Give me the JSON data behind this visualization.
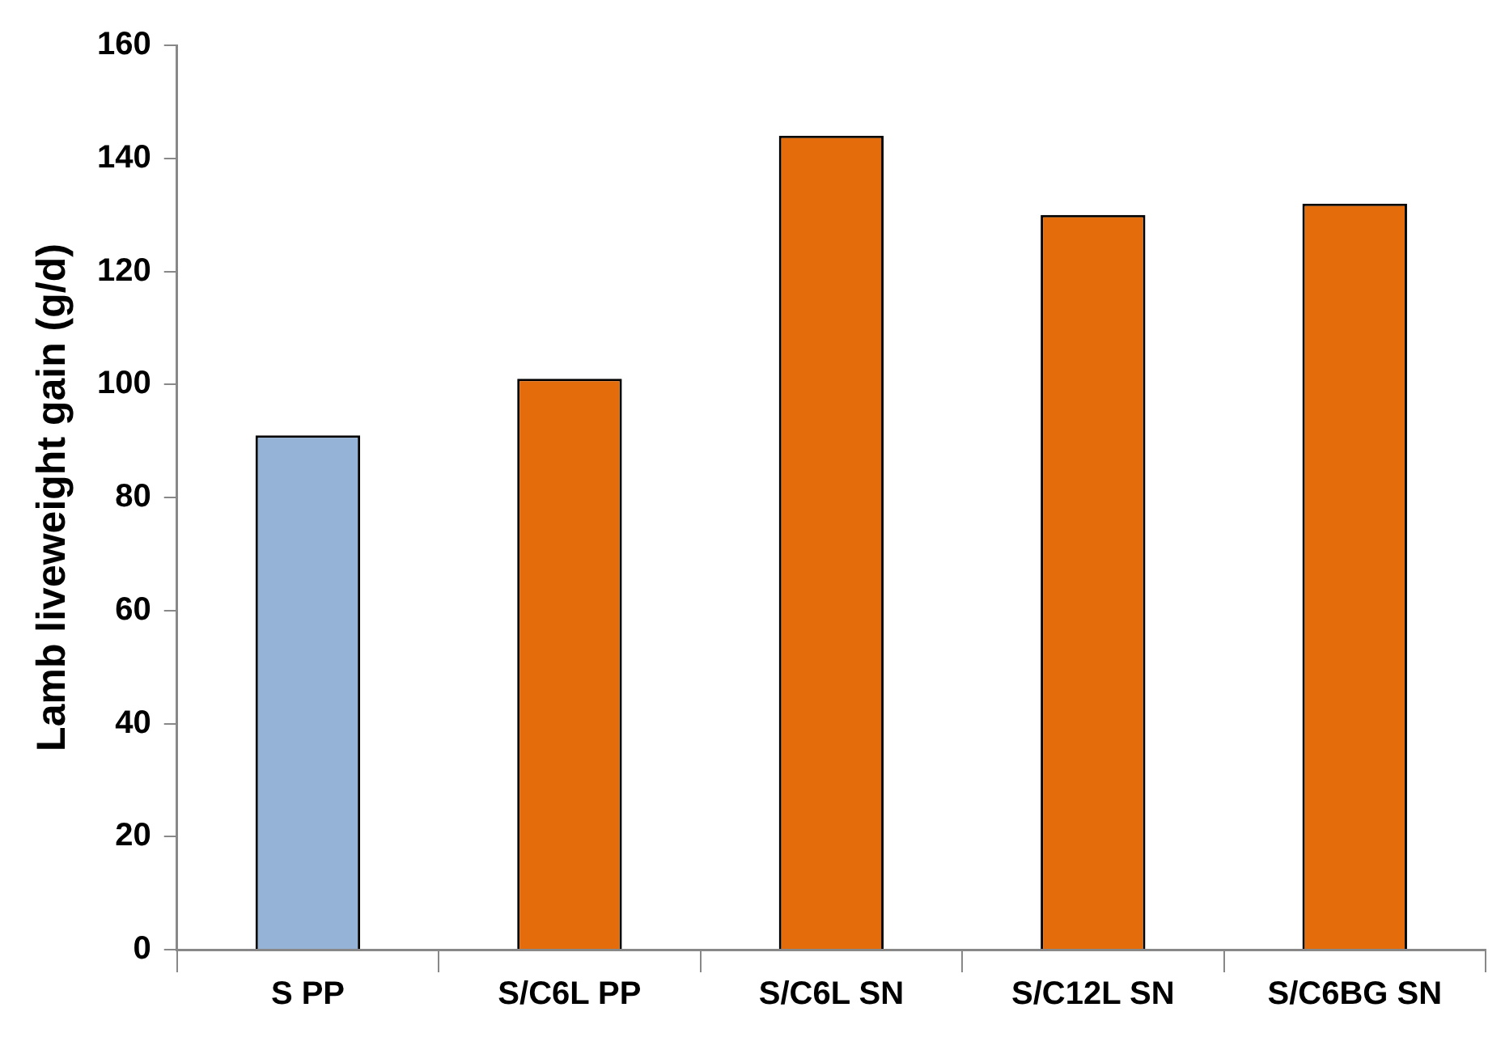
{
  "chart_data": {
    "type": "bar",
    "ylabel": "Lamb liveweight gain (g/d)",
    "categories": [
      "S PP",
      "S/C6L PP",
      "S/C6L SN",
      "S/C12L SN",
      "S/C6BG SN"
    ],
    "values": [
      91,
      101,
      144,
      130,
      132
    ],
    "colors": [
      "#95b3d7",
      "#e46c0a",
      "#e46c0a",
      "#e46c0a",
      "#e46c0a"
    ],
    "ylim": [
      0,
      160
    ],
    "yticks": [
      0,
      20,
      40,
      60,
      80,
      100,
      120,
      140,
      160
    ],
    "grid": false,
    "legend": false
  }
}
